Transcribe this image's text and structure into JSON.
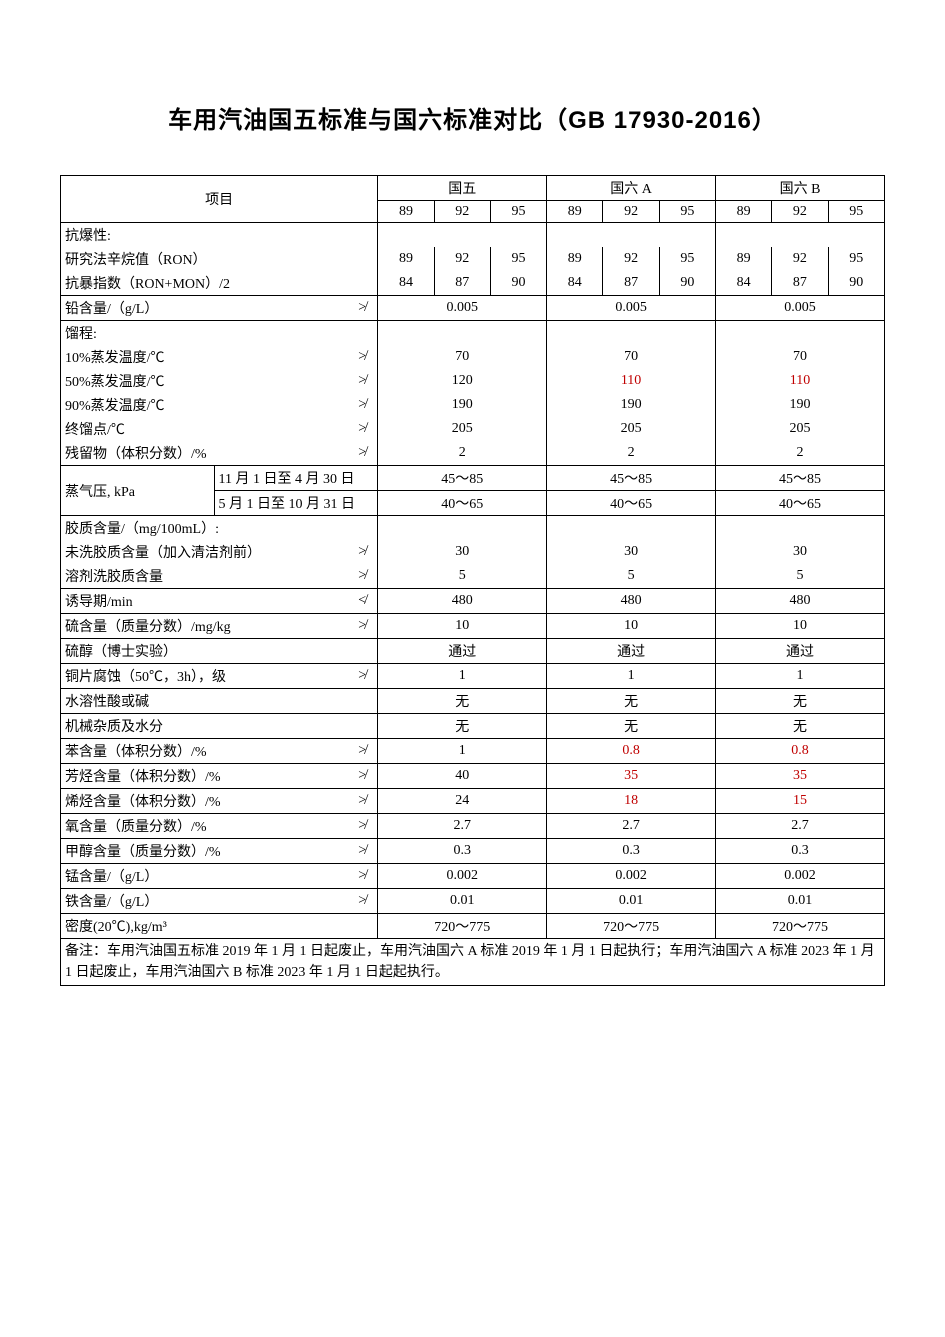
{
  "title": "车用汽油国五标准与国六标准对比（GB 17930-2016）",
  "colors": {
    "text": "#000000",
    "highlight": "#c00000",
    "border": "#000000",
    "background": "#ffffff"
  },
  "typography": {
    "title_fontsize": 24,
    "title_weight": "bold",
    "body_fontsize": 14,
    "font_family_title": "SimHei",
    "font_family_body": "SimSun"
  },
  "headers": {
    "project": "项目",
    "g5": "国五",
    "g6a": "国六 A",
    "g6b": "国六 B",
    "grades": [
      "89",
      "92",
      "95"
    ]
  },
  "symbols": {
    "not_more_than": "≯",
    "not_less_than": "≮"
  },
  "rows": {
    "antiknock_header": "抗爆性:",
    "ron_label": "研究法辛烷值（RON）",
    "ron": {
      "g5": [
        "89",
        "92",
        "95"
      ],
      "g6a": [
        "89",
        "92",
        "95"
      ],
      "g6b": [
        "89",
        "92",
        "95"
      ]
    },
    "aki_label": "抗暴指数（RON+MON）/2",
    "aki": {
      "g5": [
        "84",
        "87",
        "90"
      ],
      "g6a": [
        "84",
        "87",
        "90"
      ],
      "g6b": [
        "84",
        "87",
        "90"
      ]
    },
    "lead_label": "铅含量/（g/L）",
    "lead": {
      "g5": "0.005",
      "g6a": "0.005",
      "g6b": "0.005"
    },
    "distillation_header": "馏程:",
    "d10_label": "10%蒸发温度/℃",
    "d10": {
      "g5": "70",
      "g6a": "70",
      "g6b": "70"
    },
    "d50_label": "50%蒸发温度/℃",
    "d50": {
      "g5": "120",
      "g6a": "110",
      "g6b": "110",
      "g6a_red": true,
      "g6b_red": true
    },
    "d90_label": "90%蒸发温度/℃",
    "d90": {
      "g5": "190",
      "g6a": "190",
      "g6b": "190"
    },
    "fbp_label": "终馏点/℃",
    "fbp": {
      "g5": "205",
      "g6a": "205",
      "g6b": "205"
    },
    "residue_label": "残留物（体积分数）/%",
    "residue": {
      "g5": "2",
      "g6a": "2",
      "g6b": "2"
    },
    "vp_label": "蒸气压, kPa",
    "vp_period1": "11 月 1 日至 4 月 30 日",
    "vp_period2": "5 月 1 日至 10 月 31 日",
    "vp1": {
      "g5": "45～85",
      "g6a": "45～85",
      "g6b": "45～85"
    },
    "vp2": {
      "g5": "40～65",
      "g6a": "40～65",
      "g6b": "40～65"
    },
    "gum_header": "胶质含量/（mg/100mL）:",
    "gum_unwashed_label": "未洗胶质含量（加入清洁剂前）",
    "gum_unwashed": {
      "g5": "30",
      "g6a": "30",
      "g6b": "30"
    },
    "gum_solvent_label": "溶剂洗胶质含量",
    "gum_solvent": {
      "g5": "5",
      "g6a": "5",
      "g6b": "5"
    },
    "induction_label": "诱导期/min",
    "induction": {
      "g5": "480",
      "g6a": "480",
      "g6b": "480"
    },
    "sulfur_label": "硫含量（质量分数）/mg/kg",
    "sulfur": {
      "g5": "10",
      "g6a": "10",
      "g6b": "10"
    },
    "mercaptan_label": "硫醇（博士实验）",
    "mercaptan": {
      "g5": "通过",
      "g6a": "通过",
      "g6b": "通过"
    },
    "copper_label": "铜片腐蚀（50℃，3h），级",
    "copper": {
      "g5": "1",
      "g6a": "1",
      "g6b": "1"
    },
    "acid_label": "水溶性酸或碱",
    "acid": {
      "g5": "无",
      "g6a": "无",
      "g6b": "无"
    },
    "mech_label": "机械杂质及水分",
    "mech": {
      "g5": "无",
      "g6a": "无",
      "g6b": "无"
    },
    "benzene_label": "苯含量（体积分数）/%",
    "benzene": {
      "g5": "1",
      "g6a": "0.8",
      "g6b": "0.8",
      "g6a_red": true,
      "g6b_red": true
    },
    "aromatics_label": "芳烃含量（体积分数）/%",
    "aromatics": {
      "g5": "40",
      "g6a": "35",
      "g6b": "35",
      "g6a_red": true,
      "g6b_red": true
    },
    "olefin_label": "烯烃含量（体积分数）/%",
    "olefin": {
      "g5": "24",
      "g6a": "18",
      "g6b": "15",
      "g6a_red": true,
      "g6b_red": true
    },
    "oxygen_label": "氧含量（质量分数）/%",
    "oxygen": {
      "g5": "2.7",
      "g6a": "2.7",
      "g6b": "2.7"
    },
    "methanol_label": "甲醇含量（质量分数）/%",
    "methanol": {
      "g5": "0.3",
      "g6a": "0.3",
      "g6b": "0.3"
    },
    "mn_label": "锰含量/（g/L）",
    "mn": {
      "g5": "0.002",
      "g6a": "0.002",
      "g6b": "0.002"
    },
    "fe_label": "铁含量/（g/L）",
    "fe": {
      "g5": "0.01",
      "g6a": "0.01",
      "g6b": "0.01"
    },
    "density_label": "密度(20℃),kg/m³",
    "density": {
      "g5": "720～775",
      "g6a": "720～775",
      "g6b": "720～775"
    }
  },
  "note": "备注：车用汽油国五标准 2019 年 1 月 1 日起废止，车用汽油国六 A 标准 2019 年 1 月 1 日起执行；车用汽油国六 A 标准 2023 年 1 月 1 日起废止，车用汽油国六 B 标准 2023 年 1 月 1 日起起执行。"
}
